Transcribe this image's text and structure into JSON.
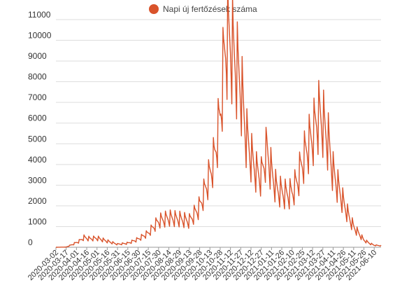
{
  "chart_data": {
    "type": "line",
    "title": "",
    "xlabel": "",
    "ylabel": "",
    "ylim": [
      0,
      11000
    ],
    "grid": true,
    "legend_position": "top-center",
    "yticks": [
      0,
      1000,
      2000,
      3000,
      4000,
      5000,
      6000,
      7000,
      8000,
      9000,
      10000,
      11000
    ],
    "xtick_labels": [
      "2020-03-02",
      "2020-03-17",
      "2020-04-01",
      "2020-04-16",
      "2020-05-01",
      "2020-05-16",
      "2020-05-31",
      "2020-06-15",
      "2020-06-30",
      "2020-07-15",
      "2020-07-30",
      "2020-08-14",
      "2020-08-29",
      "2020-09-13",
      "2020-09-28",
      "2020-10-13",
      "2020-10-28",
      "2020-11-12",
      "2020-11-27",
      "2020-12-12",
      "2020-12-27",
      "2021-01-11",
      "2021-01-26",
      "2021-02-10",
      "2021-02-25",
      "2021-03-12",
      "2021-03-27",
      "2021-04-11",
      "2021-04-26",
      "2021-05-11",
      "2021-05-26",
      "2021-06-10"
    ],
    "x_start": "2020-03-02",
    "x_end": "2021-06-20",
    "series": [
      {
        "name": "Napi új fertőzések száma",
        "color": "#d9532b",
        "points": [
          [
            "2020-03-02",
            0
          ],
          [
            "2020-03-17",
            10
          ],
          [
            "2020-03-27",
            150
          ],
          [
            "2020-04-05",
            300
          ],
          [
            "2020-04-12",
            480
          ],
          [
            "2020-04-20",
            420
          ],
          [
            "2020-05-01",
            450
          ],
          [
            "2020-05-16",
            300
          ],
          [
            "2020-05-31",
            150
          ],
          [
            "2020-06-15",
            200
          ],
          [
            "2020-06-30",
            400
          ],
          [
            "2020-07-15",
            700
          ],
          [
            "2020-07-30",
            1300
          ],
          [
            "2020-08-14",
            1450
          ],
          [
            "2020-08-29",
            1400
          ],
          [
            "2020-09-13",
            1300
          ],
          [
            "2020-09-28",
            2000
          ],
          [
            "2020-10-13",
            3600
          ],
          [
            "2020-10-20",
            4500
          ],
          [
            "2020-10-28",
            6500
          ],
          [
            "2020-11-02",
            9000
          ],
          [
            "2020-11-06",
            10200
          ],
          [
            "2020-11-12",
            10200
          ],
          [
            "2020-11-20",
            9000
          ],
          [
            "2020-11-27",
            8000
          ],
          [
            "2020-12-05",
            5500
          ],
          [
            "2020-12-12",
            4500
          ],
          [
            "2020-12-20",
            3700
          ],
          [
            "2020-12-27",
            3500
          ],
          [
            "2021-01-04",
            4800
          ],
          [
            "2021-01-11",
            3700
          ],
          [
            "2021-01-18",
            2900
          ],
          [
            "2021-01-26",
            2700
          ],
          [
            "2021-02-03",
            2600
          ],
          [
            "2021-02-10",
            2700
          ],
          [
            "2021-02-18",
            3300
          ],
          [
            "2021-02-25",
            4200
          ],
          [
            "2021-03-05",
            5000
          ],
          [
            "2021-03-12",
            5500
          ],
          [
            "2021-03-18",
            6300
          ],
          [
            "2021-03-22",
            6500
          ],
          [
            "2021-03-27",
            6200
          ],
          [
            "2021-04-04",
            5200
          ],
          [
            "2021-04-11",
            3700
          ],
          [
            "2021-04-18",
            3000
          ],
          [
            "2021-04-26",
            2200
          ],
          [
            "2021-05-04",
            1500
          ],
          [
            "2021-05-11",
            1000
          ],
          [
            "2021-05-18",
            700
          ],
          [
            "2021-05-26",
            350
          ],
          [
            "2021-06-03",
            200
          ],
          [
            "2021-06-10",
            100
          ],
          [
            "2021-06-20",
            80
          ]
        ]
      }
    ]
  }
}
